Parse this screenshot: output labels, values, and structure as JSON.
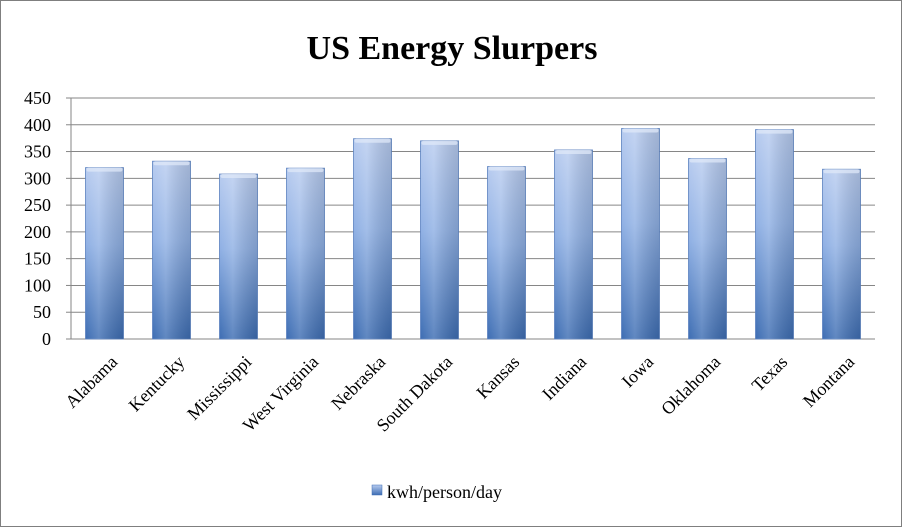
{
  "chart_data": {
    "type": "bar",
    "title": "US Energy Slurpers",
    "xlabel": "",
    "ylabel": "",
    "ylim": [
      0,
      450
    ],
    "yticks": [
      0,
      50,
      100,
      150,
      200,
      250,
      300,
      350,
      400,
      450
    ],
    "grid": true,
    "legend_position": "bottom",
    "categories": [
      "Alabama",
      "Kentucky",
      "Mississippi",
      "West Virginia",
      "Nebraska",
      "South Dakota",
      "Kansas",
      "Indiana",
      "Iowa",
      "Oklahoma",
      "Texas",
      "Montana"
    ],
    "series": [
      {
        "name": "kwh/person/day",
        "color": "#4f81bd",
        "values": [
          320,
          332,
          308,
          319,
          374,
          370,
          322,
          353,
          393,
          337,
          391,
          317
        ]
      }
    ]
  }
}
